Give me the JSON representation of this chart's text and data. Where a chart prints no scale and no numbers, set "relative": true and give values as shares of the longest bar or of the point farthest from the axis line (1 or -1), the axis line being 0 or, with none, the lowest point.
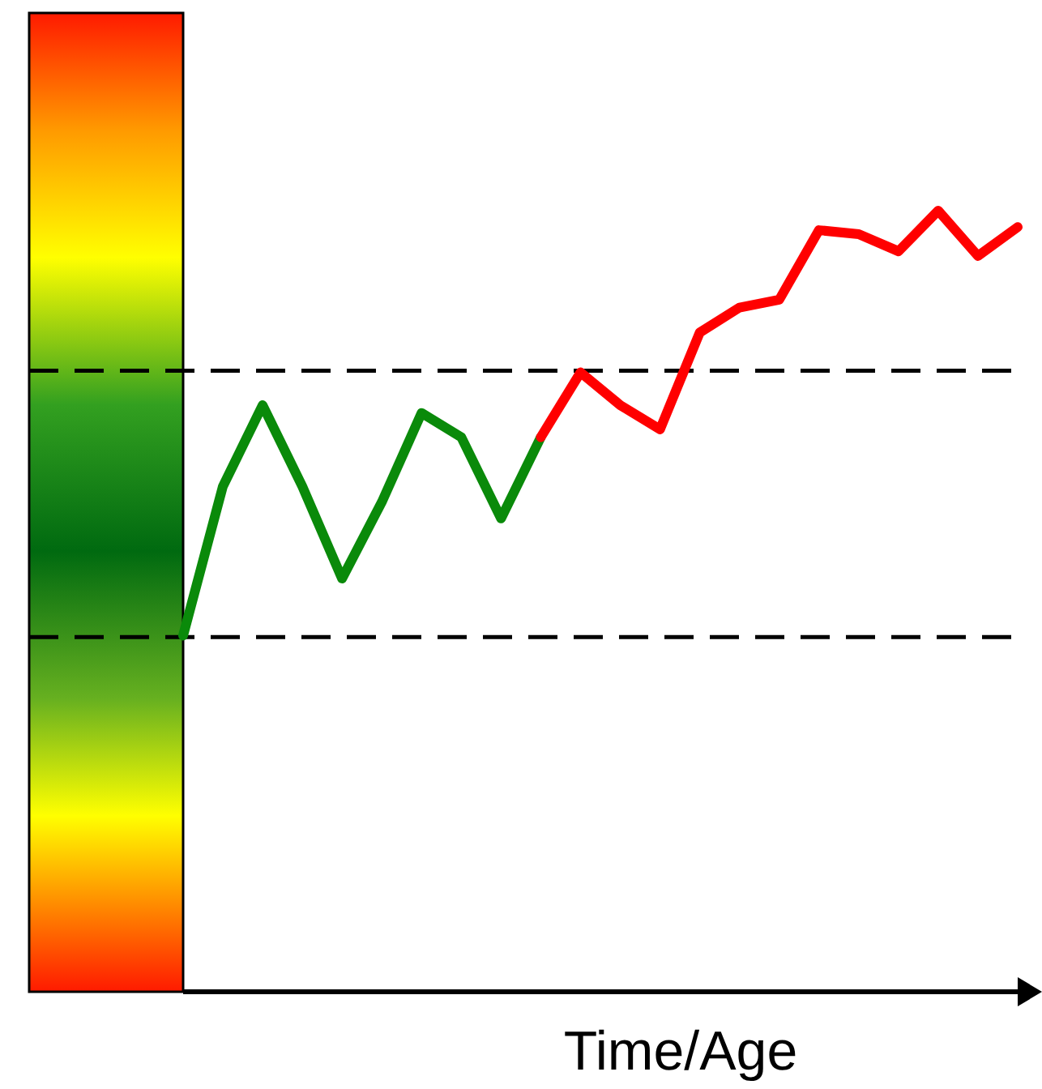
{
  "chart_data": {
    "type": "line",
    "relative": true,
    "xlabel": "Time/Age",
    "categories": [
      null,
      null,
      null,
      null,
      null,
      null,
      null,
      null,
      null,
      null,
      null,
      null,
      null,
      null,
      null,
      null,
      null,
      null,
      null,
      null,
      null,
      null
    ],
    "series": [
      {
        "color": "#0a8a0a",
        "line_style": "solid",
        "marker": "none",
        "values": [
          0.456,
          0.647,
          0.751,
          0.647,
          0.529,
          0.627,
          0.741,
          0.71,
          0.606,
          0.71,
          null,
          null,
          null,
          null,
          null,
          null,
          null,
          null,
          null,
          null,
          null,
          null
        ]
      },
      {
        "color": "#ff0000",
        "line_style": "solid",
        "marker": "none",
        "values": [
          null,
          null,
          null,
          null,
          null,
          null,
          null,
          null,
          null,
          0.71,
          0.793,
          0.751,
          0.72,
          0.844,
          0.876,
          0.886,
          0.975,
          0.97,
          0.948,
          1.0,
          0.942,
          0.979
        ]
      }
    ],
    "ref_lines": [
      {
        "axis": "y",
        "value": 0.795,
        "color": "#000000",
        "line_style": "dashed"
      },
      {
        "axis": "y",
        "value": 0.454,
        "color": "#000000",
        "line_style": "dashed"
      }
    ]
  }
}
